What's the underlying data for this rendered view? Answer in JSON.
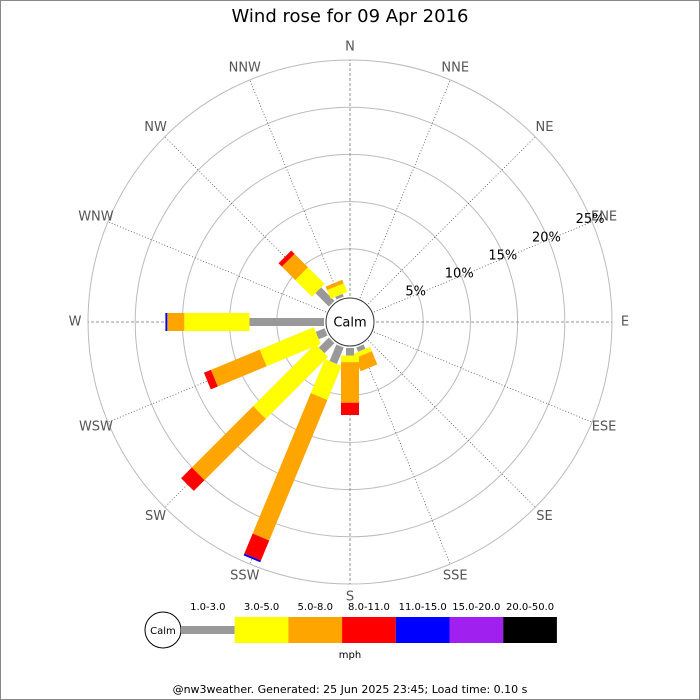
{
  "chart_data": {
    "type": "windrose",
    "title": "Wind rose for 09 Apr 2016",
    "directions": [
      "N",
      "NNE",
      "NE",
      "ENE",
      "E",
      "ESE",
      "SE",
      "SSE",
      "S",
      "SSW",
      "SW",
      "WSW",
      "W",
      "WNW",
      "NW",
      "NNW"
    ],
    "calm_label": "Calm",
    "unit": "mph",
    "rlim": [
      0,
      25
    ],
    "rticks": [
      {
        "value": 5,
        "label": "5%"
      },
      {
        "value": 10,
        "label": "10%"
      },
      {
        "value": 15,
        "label": "15%"
      },
      {
        "value": 20,
        "label": "20%"
      },
      {
        "value": 25,
        "label": "25%"
      }
    ],
    "series": [
      {
        "name": "1.0-3.0",
        "color": "#999999",
        "values": [
          0,
          0,
          0,
          0,
          0,
          0,
          0,
          0.5,
          0.8,
          1.9,
          1.5,
          1.0,
          7.9,
          0,
          2.0,
          0.3
        ]
      },
      {
        "name": "3.0-5.0",
        "color": "#ffff00",
        "values": [
          0,
          0,
          0,
          0,
          0,
          0,
          0,
          0.5,
          0.7,
          3.9,
          9.3,
          6.2,
          6.9,
          0,
          2.5,
          1.0
        ]
      },
      {
        "name": "5.0-8.0",
        "color": "#ffa500",
        "values": [
          0,
          0,
          0,
          0,
          0,
          0,
          0,
          1.5,
          4.3,
          16.1,
          9.2,
          5.6,
          1.8,
          0,
          2.0,
          0.4
        ]
      },
      {
        "name": "8.0-11.0",
        "color": "#ff0000",
        "values": [
          0,
          0,
          0,
          0,
          0,
          0,
          0,
          0,
          1.3,
          2.3,
          1.6,
          0.8,
          0,
          0,
          0.5,
          0
        ]
      },
      {
        "name": "11.0-15.0",
        "color": "#0000ff",
        "values": [
          0,
          0,
          0,
          0,
          0,
          0,
          0,
          0,
          0,
          0.2,
          0,
          0,
          0.2,
          0,
          0,
          0
        ]
      },
      {
        "name": "15.0-20.0",
        "color": "#a020f0",
        "values": [
          0,
          0,
          0,
          0,
          0,
          0,
          0,
          0,
          0,
          0,
          0,
          0,
          0,
          0,
          0,
          0
        ]
      },
      {
        "name": "20.0-50.0",
        "color": "#000000",
        "values": [
          0,
          0,
          0,
          0,
          0,
          0,
          0,
          0,
          0,
          0,
          0,
          0,
          0,
          0,
          0,
          0
        ]
      }
    ],
    "footer": "@nw3weather. Generated: 25 Jun 2025 23:45; Load time: 0.10 s"
  }
}
